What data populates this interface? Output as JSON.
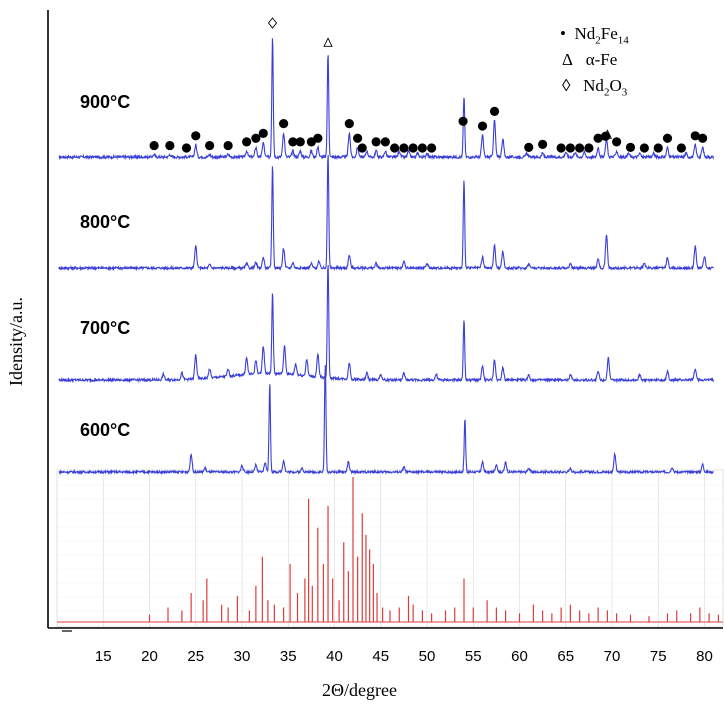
{
  "chart_data": {
    "type": "line",
    "xlabel": "2Θ/degree",
    "ylabel": "Idensity/a.u.",
    "xlim": [
      10,
      82
    ],
    "x_ticks": [
      15,
      20,
      25,
      30,
      35,
      40,
      45,
      50,
      55,
      60,
      65,
      70,
      75,
      80
    ],
    "grid": false,
    "series": [
      {
        "name": "900°C",
        "color": "#3a3fd8",
        "peaks": [
          {
            "x": 20.5,
            "h": 0.02
          },
          {
            "x": 22.2,
            "h": 0.02
          },
          {
            "x": 25.0,
            "h": 0.1
          },
          {
            "x": 26.5,
            "h": 0.02
          },
          {
            "x": 28.5,
            "h": 0.02
          },
          {
            "x": 30.5,
            "h": 0.05
          },
          {
            "x": 31.5,
            "h": 0.08
          },
          {
            "x": 32.3,
            "h": 0.12
          },
          {
            "x": 33.3,
            "h": 1.0
          },
          {
            "x": 34.5,
            "h": 0.2
          },
          {
            "x": 35.5,
            "h": 0.05
          },
          {
            "x": 36.3,
            "h": 0.05
          },
          {
            "x": 37.5,
            "h": 0.05
          },
          {
            "x": 38.2,
            "h": 0.08
          },
          {
            "x": 39.3,
            "h": 0.85
          },
          {
            "x": 41.6,
            "h": 0.2
          },
          {
            "x": 42.5,
            "h": 0.08
          },
          {
            "x": 43.5,
            "h": 0.05
          },
          {
            "x": 44.5,
            "h": 0.05
          },
          {
            "x": 45.5,
            "h": 0.05
          },
          {
            "x": 47.0,
            "h": 0.05
          },
          {
            "x": 48.0,
            "h": 0.05
          },
          {
            "x": 49.0,
            "h": 0.03
          },
          {
            "x": 50.0,
            "h": 0.03
          },
          {
            "x": 54.0,
            "h": 0.5
          },
          {
            "x": 56.0,
            "h": 0.18
          },
          {
            "x": 57.3,
            "h": 0.3
          },
          {
            "x": 58.2,
            "h": 0.15
          },
          {
            "x": 60.8,
            "h": 0.03
          },
          {
            "x": 62.5,
            "h": 0.03
          },
          {
            "x": 65.0,
            "h": 0.04
          },
          {
            "x": 66.0,
            "h": 0.04
          },
          {
            "x": 67.0,
            "h": 0.04
          },
          {
            "x": 68.5,
            "h": 0.08
          },
          {
            "x": 69.4,
            "h": 0.15
          },
          {
            "x": 70.5,
            "h": 0.05
          },
          {
            "x": 71.8,
            "h": 0.03
          },
          {
            "x": 73.0,
            "h": 0.03
          },
          {
            "x": 74.5,
            "h": 0.03
          },
          {
            "x": 76.0,
            "h": 0.08
          },
          {
            "x": 78.0,
            "h": 0.03
          },
          {
            "x": 79.0,
            "h": 0.1
          },
          {
            "x": 79.8,
            "h": 0.08
          }
        ]
      },
      {
        "name": "800°C",
        "color": "#3a3fd8",
        "peaks": [
          {
            "x": 25.0,
            "h": 0.2
          },
          {
            "x": 26.5,
            "h": 0.03
          },
          {
            "x": 30.5,
            "h": 0.04
          },
          {
            "x": 31.5,
            "h": 0.05
          },
          {
            "x": 32.3,
            "h": 0.1
          },
          {
            "x": 33.3,
            "h": 0.95
          },
          {
            "x": 34.5,
            "h": 0.18
          },
          {
            "x": 35.5,
            "h": 0.05
          },
          {
            "x": 37.5,
            "h": 0.04
          },
          {
            "x": 38.3,
            "h": 0.06
          },
          {
            "x": 39.3,
            "h": 1.05
          },
          {
            "x": 41.6,
            "h": 0.12
          },
          {
            "x": 44.5,
            "h": 0.04
          },
          {
            "x": 47.5,
            "h": 0.06
          },
          {
            "x": 50.0,
            "h": 0.04
          },
          {
            "x": 54.0,
            "h": 0.8
          },
          {
            "x": 56.0,
            "h": 0.1
          },
          {
            "x": 57.3,
            "h": 0.2
          },
          {
            "x": 58.2,
            "h": 0.15
          },
          {
            "x": 61.0,
            "h": 0.04
          },
          {
            "x": 65.5,
            "h": 0.04
          },
          {
            "x": 68.5,
            "h": 0.08
          },
          {
            "x": 69.4,
            "h": 0.3
          },
          {
            "x": 73.5,
            "h": 0.05
          },
          {
            "x": 76.0,
            "h": 0.1
          },
          {
            "x": 79.0,
            "h": 0.2
          },
          {
            "x": 80.0,
            "h": 0.1
          }
        ]
      },
      {
        "name": "700°C",
        "color": "#3a3fd8",
        "peaks": [
          {
            "x": 21.5,
            "h": 0.05
          },
          {
            "x": 23.5,
            "h": 0.06
          },
          {
            "x": 25.0,
            "h": 0.22
          },
          {
            "x": 26.5,
            "h": 0.08
          },
          {
            "x": 28.5,
            "h": 0.06
          },
          {
            "x": 30.5,
            "h": 0.15
          },
          {
            "x": 31.5,
            "h": 0.12
          },
          {
            "x": 32.3,
            "h": 0.25
          },
          {
            "x": 33.3,
            "h": 0.75
          },
          {
            "x": 34.6,
            "h": 0.25
          },
          {
            "x": 35.8,
            "h": 0.1
          },
          {
            "x": 37.0,
            "h": 0.15
          },
          {
            "x": 38.2,
            "h": 0.2
          },
          {
            "x": 39.3,
            "h": 1.05
          },
          {
            "x": 41.6,
            "h": 0.15
          },
          {
            "x": 43.5,
            "h": 0.06
          },
          {
            "x": 45.0,
            "h": 0.05
          },
          {
            "x": 47.5,
            "h": 0.06
          },
          {
            "x": 51.0,
            "h": 0.05
          },
          {
            "x": 54.0,
            "h": 0.55
          },
          {
            "x": 56.0,
            "h": 0.12
          },
          {
            "x": 57.3,
            "h": 0.18
          },
          {
            "x": 58.2,
            "h": 0.12
          },
          {
            "x": 61.0,
            "h": 0.05
          },
          {
            "x": 65.5,
            "h": 0.05
          },
          {
            "x": 68.5,
            "h": 0.08
          },
          {
            "x": 69.6,
            "h": 0.2
          },
          {
            "x": 73.0,
            "h": 0.05
          },
          {
            "x": 76.0,
            "h": 0.08
          },
          {
            "x": 79.0,
            "h": 0.1
          }
        ]
      },
      {
        "name": "600°C",
        "color": "#3a3fd8",
        "peaks": [
          {
            "x": 24.5,
            "h": 0.18
          },
          {
            "x": 26.0,
            "h": 0.04
          },
          {
            "x": 30.0,
            "h": 0.07
          },
          {
            "x": 31.5,
            "h": 0.07
          },
          {
            "x": 32.5,
            "h": 0.1
          },
          {
            "x": 33.0,
            "h": 0.9
          },
          {
            "x": 34.5,
            "h": 0.12
          },
          {
            "x": 36.5,
            "h": 0.04
          },
          {
            "x": 39.0,
            "h": 1.1
          },
          {
            "x": 41.5,
            "h": 0.1
          },
          {
            "x": 47.5,
            "h": 0.05
          },
          {
            "x": 54.1,
            "h": 0.55
          },
          {
            "x": 56.0,
            "h": 0.1
          },
          {
            "x": 57.5,
            "h": 0.08
          },
          {
            "x": 58.5,
            "h": 0.1
          },
          {
            "x": 61.0,
            "h": 0.04
          },
          {
            "x": 65.5,
            "h": 0.04
          },
          {
            "x": 70.3,
            "h": 0.18
          },
          {
            "x": 76.5,
            "h": 0.05
          },
          {
            "x": 79.8,
            "h": 0.08
          }
        ]
      }
    ],
    "reference_pattern": {
      "name": "reference",
      "color": "#e03b3b",
      "sticks": [
        {
          "x": 20.0,
          "h": 0.05
        },
        {
          "x": 22.0,
          "h": 0.1
        },
        {
          "x": 23.5,
          "h": 0.08
        },
        {
          "x": 24.5,
          "h": 0.2
        },
        {
          "x": 25.8,
          "h": 0.15
        },
        {
          "x": 26.2,
          "h": 0.3
        },
        {
          "x": 27.8,
          "h": 0.12
        },
        {
          "x": 28.5,
          "h": 0.1
        },
        {
          "x": 29.5,
          "h": 0.18
        },
        {
          "x": 30.8,
          "h": 0.08
        },
        {
          "x": 31.5,
          "h": 0.25
        },
        {
          "x": 32.2,
          "h": 0.45
        },
        {
          "x": 32.8,
          "h": 0.15
        },
        {
          "x": 33.5,
          "h": 0.12
        },
        {
          "x": 34.5,
          "h": 0.1
        },
        {
          "x": 35.2,
          "h": 0.4
        },
        {
          "x": 36.0,
          "h": 0.2
        },
        {
          "x": 36.8,
          "h": 0.3
        },
        {
          "x": 37.2,
          "h": 0.85
        },
        {
          "x": 37.6,
          "h": 0.25
        },
        {
          "x": 38.2,
          "h": 0.65
        },
        {
          "x": 38.8,
          "h": 0.4
        },
        {
          "x": 39.3,
          "h": 0.8
        },
        {
          "x": 39.8,
          "h": 0.3
        },
        {
          "x": 40.5,
          "h": 0.15
        },
        {
          "x": 41.0,
          "h": 0.55
        },
        {
          "x": 41.5,
          "h": 0.35
        },
        {
          "x": 42.0,
          "h": 1.0
        },
        {
          "x": 42.5,
          "h": 0.45
        },
        {
          "x": 43.0,
          "h": 0.75
        },
        {
          "x": 43.4,
          "h": 0.6
        },
        {
          "x": 43.8,
          "h": 0.5
        },
        {
          "x": 44.2,
          "h": 0.4
        },
        {
          "x": 44.6,
          "h": 0.2
        },
        {
          "x": 45.2,
          "h": 0.1
        },
        {
          "x": 46.0,
          "h": 0.08
        },
        {
          "x": 47.0,
          "h": 0.1
        },
        {
          "x": 48.0,
          "h": 0.18
        },
        {
          "x": 48.5,
          "h": 0.12
        },
        {
          "x": 49.5,
          "h": 0.08
        },
        {
          "x": 50.5,
          "h": 0.06
        },
        {
          "x": 52.0,
          "h": 0.08
        },
        {
          "x": 53.0,
          "h": 0.1
        },
        {
          "x": 54.0,
          "h": 0.3
        },
        {
          "x": 55.0,
          "h": 0.1
        },
        {
          "x": 56.5,
          "h": 0.15
        },
        {
          "x": 57.5,
          "h": 0.1
        },
        {
          "x": 58.5,
          "h": 0.08
        },
        {
          "x": 60.0,
          "h": 0.06
        },
        {
          "x": 61.5,
          "h": 0.12
        },
        {
          "x": 62.5,
          "h": 0.08
        },
        {
          "x": 63.5,
          "h": 0.06
        },
        {
          "x": 64.5,
          "h": 0.1
        },
        {
          "x": 65.5,
          "h": 0.12
        },
        {
          "x": 66.5,
          "h": 0.08
        },
        {
          "x": 67.5,
          "h": 0.06
        },
        {
          "x": 68.5,
          "h": 0.1
        },
        {
          "x": 69.5,
          "h": 0.08
        },
        {
          "x": 70.5,
          "h": 0.06
        },
        {
          "x": 72.0,
          "h": 0.05
        },
        {
          "x": 74.0,
          "h": 0.04
        },
        {
          "x": 76.0,
          "h": 0.06
        },
        {
          "x": 77.0,
          "h": 0.08
        },
        {
          "x": 78.5,
          "h": 0.06
        },
        {
          "x": 79.5,
          "h": 0.1
        },
        {
          "x": 80.5,
          "h": 0.06
        },
        {
          "x": 81.5,
          "h": 0.05
        }
      ]
    },
    "markers": {
      "Nd2Fe14": [
        20.5,
        22.2,
        24.0,
        25.0,
        26.5,
        28.5,
        30.5,
        31.5,
        32.3,
        34.5,
        35.5,
        36.3,
        37.5,
        38.2,
        41.6,
        42.5,
        43.0,
        44.5,
        45.5,
        46.5,
        47.5,
        48.5,
        49.5,
        50.5,
        53.9,
        56.0,
        57.3,
        61.0,
        62.5,
        64.5,
        65.5,
        66.5,
        67.5,
        68.5,
        69.3,
        70.5,
        72.0,
        73.5,
        75.0,
        76.0,
        77.5,
        79.0,
        79.8
      ],
      "alpha_Fe": [
        39.3,
        69.5
      ],
      "Nd2O3": [
        33.3
      ]
    },
    "legend_placement": "top-right"
  },
  "labels": {
    "temps": [
      "900°C",
      "800°C",
      "700°C",
      "600°C"
    ],
    "legend": {
      "nd2fe14": {
        "sym": "•",
        "base": "Nd",
        "sub1": "2",
        "mid": "Fe",
        "sub2": "14"
      },
      "afe": {
        "sym": "Δ",
        "text": "α-Fe"
      },
      "nd2o3": {
        "sym": "◊",
        "base": "Nd",
        "sub1": "2",
        "mid": "O",
        "sub2": "3"
      }
    }
  }
}
